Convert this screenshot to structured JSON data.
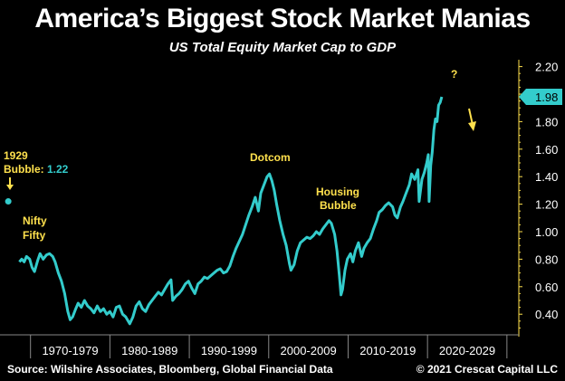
{
  "header": {
    "title": "America’s Biggest Stock Market Manias",
    "subtitle": "US Total Equity Market Cap to GDP"
  },
  "footer": {
    "source": "Source: Wilshire Associates, Bloomberg, Global Financial Data",
    "copyright": "© 2021 Crescat Capital LLC"
  },
  "colors": {
    "line": "#33cccc",
    "annotation": "#ffe14d",
    "background": "#000000",
    "axis": "#ffe14d"
  },
  "chart_data": {
    "type": "line",
    "title": "America’s Biggest Stock Market Manias",
    "subtitle": "US Total Equity Market Cap to GDP",
    "xlabel": "",
    "ylabel": "",
    "ylim": [
      0.25,
      2.25
    ],
    "xlim": [
      1966.5,
      2031.5
    ],
    "yticks": [
      "0.40",
      "0.60",
      "0.80",
      "1.00",
      "1.20",
      "1.40",
      "1.60",
      "1.80",
      "2.00",
      "2.20"
    ],
    "xtick_labels": [
      "1970-1979",
      "1980-1989",
      "1990-1999",
      "2000-2009",
      "2010-2019",
      "2020-2029"
    ],
    "current_value_label": "1.98",
    "grid": false,
    "series": [
      {
        "values": [
          [
            1968.6,
            0.78
          ],
          [
            1968.9,
            0.8
          ],
          [
            1969.2,
            0.78
          ],
          [
            1969.5,
            0.82
          ],
          [
            1969.9,
            0.8
          ],
          [
            1970.2,
            0.74
          ],
          [
            1970.5,
            0.71
          ],
          [
            1970.9,
            0.79
          ],
          [
            1971.2,
            0.84
          ],
          [
            1971.6,
            0.8
          ],
          [
            1972.0,
            0.83
          ],
          [
            1972.4,
            0.84
          ],
          [
            1972.8,
            0.82
          ],
          [
            1973.1,
            0.78
          ],
          [
            1973.5,
            0.7
          ],
          [
            1973.9,
            0.64
          ],
          [
            1974.3,
            0.55
          ],
          [
            1974.7,
            0.42
          ],
          [
            1975.0,
            0.36
          ],
          [
            1975.3,
            0.38
          ],
          [
            1975.7,
            0.44
          ],
          [
            1976.0,
            0.48
          ],
          [
            1976.4,
            0.45
          ],
          [
            1976.8,
            0.5
          ],
          [
            1977.2,
            0.46
          ],
          [
            1977.6,
            0.44
          ],
          [
            1978.0,
            0.41
          ],
          [
            1978.4,
            0.46
          ],
          [
            1978.8,
            0.42
          ],
          [
            1979.2,
            0.44
          ],
          [
            1979.6,
            0.4
          ],
          [
            1980.0,
            0.42
          ],
          [
            1980.4,
            0.38
          ],
          [
            1980.8,
            0.45
          ],
          [
            1981.2,
            0.46
          ],
          [
            1981.6,
            0.4
          ],
          [
            1982.0,
            0.38
          ],
          [
            1982.5,
            0.33
          ],
          [
            1982.9,
            0.38
          ],
          [
            1983.3,
            0.46
          ],
          [
            1983.7,
            0.49
          ],
          [
            1984.1,
            0.44
          ],
          [
            1984.5,
            0.42
          ],
          [
            1984.9,
            0.47
          ],
          [
            1985.3,
            0.5
          ],
          [
            1985.7,
            0.53
          ],
          [
            1986.1,
            0.56
          ],
          [
            1986.5,
            0.54
          ],
          [
            1986.9,
            0.58
          ],
          [
            1987.3,
            0.62
          ],
          [
            1987.7,
            0.65
          ],
          [
            1987.9,
            0.5
          ],
          [
            1988.3,
            0.53
          ],
          [
            1988.7,
            0.55
          ],
          [
            1989.1,
            0.58
          ],
          [
            1989.5,
            0.62
          ],
          [
            1989.9,
            0.64
          ],
          [
            1990.3,
            0.59
          ],
          [
            1990.7,
            0.55
          ],
          [
            1991.1,
            0.62
          ],
          [
            1991.5,
            0.64
          ],
          [
            1991.9,
            0.67
          ],
          [
            1992.3,
            0.66
          ],
          [
            1992.7,
            0.68
          ],
          [
            1993.1,
            0.7
          ],
          [
            1993.5,
            0.72
          ],
          [
            1993.9,
            0.73
          ],
          [
            1994.3,
            0.7
          ],
          [
            1994.7,
            0.71
          ],
          [
            1995.1,
            0.75
          ],
          [
            1995.5,
            0.82
          ],
          [
            1995.9,
            0.88
          ],
          [
            1996.3,
            0.93
          ],
          [
            1996.7,
            0.98
          ],
          [
            1997.1,
            1.05
          ],
          [
            1997.5,
            1.12
          ],
          [
            1997.9,
            1.18
          ],
          [
            1998.3,
            1.25
          ],
          [
            1998.7,
            1.15
          ],
          [
            1999.0,
            1.28
          ],
          [
            1999.4,
            1.34
          ],
          [
            1999.8,
            1.4
          ],
          [
            2000.1,
            1.42
          ],
          [
            2000.4,
            1.37
          ],
          [
            2000.7,
            1.3
          ],
          [
            2001.0,
            1.2
          ],
          [
            2001.4,
            1.08
          ],
          [
            2001.8,
            0.98
          ],
          [
            2002.2,
            0.9
          ],
          [
            2002.6,
            0.77
          ],
          [
            2002.8,
            0.72
          ],
          [
            2003.2,
            0.76
          ],
          [
            2003.6,
            0.86
          ],
          [
            2004.0,
            0.92
          ],
          [
            2004.4,
            0.94
          ],
          [
            2004.8,
            0.96
          ],
          [
            2005.2,
            0.95
          ],
          [
            2005.6,
            0.97
          ],
          [
            2006.0,
            1.0
          ],
          [
            2006.4,
            0.98
          ],
          [
            2006.8,
            1.02
          ],
          [
            2007.2,
            1.05
          ],
          [
            2007.6,
            1.08
          ],
          [
            2007.9,
            1.06
          ],
          [
            2008.3,
            0.98
          ],
          [
            2008.6,
            0.86
          ],
          [
            2008.9,
            0.68
          ],
          [
            2009.1,
            0.54
          ],
          [
            2009.3,
            0.58
          ],
          [
            2009.6,
            0.72
          ],
          [
            2009.9,
            0.8
          ],
          [
            2010.3,
            0.84
          ],
          [
            2010.6,
            0.78
          ],
          [
            2010.9,
            0.86
          ],
          [
            2011.3,
            0.92
          ],
          [
            2011.7,
            0.82
          ],
          [
            2012.0,
            0.88
          ],
          [
            2012.4,
            0.92
          ],
          [
            2012.8,
            0.95
          ],
          [
            2013.2,
            1.02
          ],
          [
            2013.6,
            1.08
          ],
          [
            2013.9,
            1.14
          ],
          [
            2014.3,
            1.16
          ],
          [
            2014.7,
            1.19
          ],
          [
            2015.1,
            1.21
          ],
          [
            2015.6,
            1.18
          ],
          [
            2015.9,
            1.12
          ],
          [
            2016.2,
            1.1
          ],
          [
            2016.6,
            1.18
          ],
          [
            2016.9,
            1.22
          ],
          [
            2017.3,
            1.28
          ],
          [
            2017.7,
            1.34
          ],
          [
            2018.0,
            1.42
          ],
          [
            2018.4,
            1.38
          ],
          [
            2018.8,
            1.45
          ],
          [
            2018.95,
            1.22
          ],
          [
            2019.3,
            1.38
          ],
          [
            2019.6,
            1.43
          ],
          [
            2019.9,
            1.5
          ],
          [
            2020.1,
            1.56
          ],
          [
            2020.2,
            1.22
          ],
          [
            2020.4,
            1.48
          ],
          [
            2020.6,
            1.58
          ],
          [
            2020.8,
            1.74
          ],
          [
            2021.0,
            1.82
          ],
          [
            2021.2,
            1.8
          ],
          [
            2021.4,
            1.92
          ],
          [
            2021.6,
            1.94
          ],
          [
            2021.8,
            1.98
          ]
        ]
      }
    ],
    "annotations": {
      "bubble_1929_line1": "1929",
      "bubble_1929_line2_prefix": "Bubble: ",
      "bubble_1929_value": "1.22",
      "bubble_1929_point": [
        1967.2,
        1.22
      ],
      "nifty_line1": "Nifty",
      "nifty_line2": "Fifty",
      "dotcom": "Dotcom",
      "housing_line1": "Housing",
      "housing_line2": "Bubble",
      "question": "?"
    }
  }
}
